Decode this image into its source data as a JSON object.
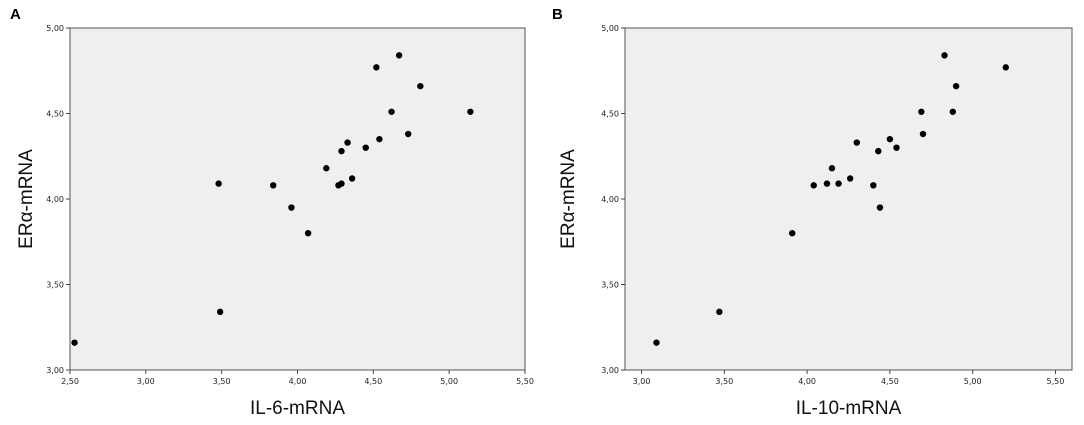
{
  "panels": [
    {
      "letter": "A",
      "chart_data": {
        "type": "scatter",
        "xlabel": "IL-6-mRNA",
        "ylabel": "ERα-mRNA",
        "xlim": [
          2.5,
          5.5
        ],
        "ylim": [
          3.0,
          5.0
        ],
        "x_ticks": [
          "2,50",
          "3,00",
          "3,50",
          "4,00",
          "4,50",
          "5,00",
          "5,50"
        ],
        "y_ticks": [
          "3,00",
          "3,50",
          "4,00",
          "4,50",
          "5,00"
        ],
        "x_tick_values": [
          2.5,
          3.0,
          3.5,
          4.0,
          4.5,
          5.0,
          5.5
        ],
        "y_tick_values": [
          3.0,
          3.5,
          4.0,
          4.5,
          5.0
        ],
        "grid": false,
        "point_color": "#000000",
        "background": "#efefef",
        "points": [
          {
            "x": 2.53,
            "y": 3.16
          },
          {
            "x": 3.48,
            "y": 4.09
          },
          {
            "x": 3.49,
            "y": 3.34
          },
          {
            "x": 3.84,
            "y": 4.08
          },
          {
            "x": 3.96,
            "y": 3.95
          },
          {
            "x": 4.07,
            "y": 3.8
          },
          {
            "x": 4.19,
            "y": 4.18
          },
          {
            "x": 4.27,
            "y": 4.08
          },
          {
            "x": 4.29,
            "y": 4.09
          },
          {
            "x": 4.29,
            "y": 4.28
          },
          {
            "x": 4.33,
            "y": 4.33
          },
          {
            "x": 4.36,
            "y": 4.12
          },
          {
            "x": 4.45,
            "y": 4.3
          },
          {
            "x": 4.52,
            "y": 4.77
          },
          {
            "x": 4.54,
            "y": 4.35
          },
          {
            "x": 4.62,
            "y": 4.51
          },
          {
            "x": 4.67,
            "y": 4.84
          },
          {
            "x": 4.73,
            "y": 4.38
          },
          {
            "x": 4.81,
            "y": 4.66
          },
          {
            "x": 5.14,
            "y": 4.51
          }
        ]
      }
    },
    {
      "letter": "B",
      "chart_data": {
        "type": "scatter",
        "xlabel": "IL-10-mRNA",
        "ylabel": "ERα-mRNA",
        "xlim": [
          2.9,
          5.6
        ],
        "ylim": [
          3.0,
          5.0
        ],
        "x_ticks": [
          "3,00",
          "3,50",
          "4,00",
          "4,50",
          "5,00",
          "5,50"
        ],
        "y_ticks": [
          "3,00",
          "3,50",
          "4,00",
          "4,50",
          "5,00"
        ],
        "x_tick_values": [
          3.0,
          3.5,
          4.0,
          4.5,
          5.0,
          5.5
        ],
        "y_tick_values": [
          3.0,
          3.5,
          4.0,
          4.5,
          5.0
        ],
        "grid": false,
        "point_color": "#000000",
        "background": "#efefef",
        "points": [
          {
            "x": 3.09,
            "y": 3.16
          },
          {
            "x": 3.47,
            "y": 3.34
          },
          {
            "x": 3.91,
            "y": 3.8
          },
          {
            "x": 4.04,
            "y": 4.08
          },
          {
            "x": 4.12,
            "y": 4.09
          },
          {
            "x": 4.15,
            "y": 4.18
          },
          {
            "x": 4.19,
            "y": 4.09
          },
          {
            "x": 4.26,
            "y": 4.12
          },
          {
            "x": 4.3,
            "y": 4.33
          },
          {
            "x": 4.4,
            "y": 4.08
          },
          {
            "x": 4.43,
            "y": 4.28
          },
          {
            "x": 4.44,
            "y": 3.95
          },
          {
            "x": 4.5,
            "y": 4.35
          },
          {
            "x": 4.54,
            "y": 4.3
          },
          {
            "x": 4.69,
            "y": 4.51
          },
          {
            "x": 4.7,
            "y": 4.38
          },
          {
            "x": 4.83,
            "y": 4.84
          },
          {
            "x": 4.88,
            "y": 4.51
          },
          {
            "x": 4.9,
            "y": 4.66
          },
          {
            "x": 5.2,
            "y": 4.77
          }
        ]
      }
    }
  ]
}
